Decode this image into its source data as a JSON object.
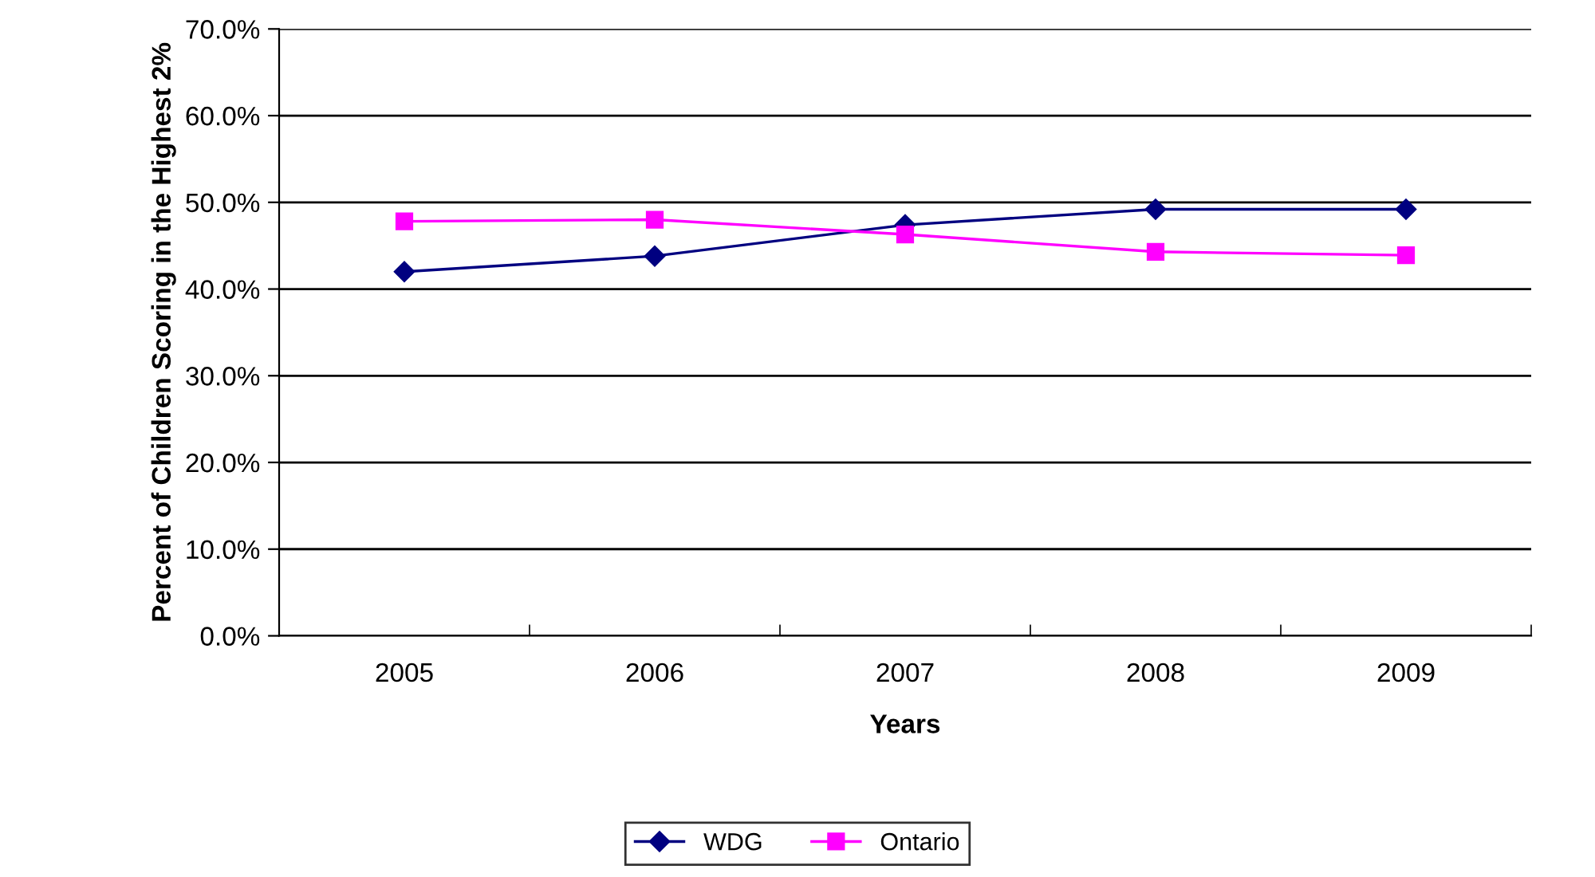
{
  "chart_data": {
    "type": "line",
    "xlabel": "Years",
    "ylabel": "Percent of Children Scoring in the Highest 2%",
    "categories": [
      "2005",
      "2006",
      "2007",
      "2008",
      "2009"
    ],
    "series": [
      {
        "name": "WDG",
        "color": "#000080",
        "marker": "diamond",
        "values": [
          42.0,
          43.8,
          47.4,
          49.2,
          49.2
        ]
      },
      {
        "name": "Ontario",
        "color": "#ff00ff",
        "marker": "square",
        "values": [
          47.8,
          48.0,
          46.3,
          44.3,
          43.9
        ]
      }
    ],
    "ylim": [
      0,
      70
    ],
    "yticks": [
      {
        "value": 0,
        "label": "0.0%"
      },
      {
        "value": 10,
        "label": "10.0%"
      },
      {
        "value": 20,
        "label": "20.0%"
      },
      {
        "value": 30,
        "label": "30.0%"
      },
      {
        "value": 40,
        "label": "40.0%"
      },
      {
        "value": 50,
        "label": "50.0%"
      },
      {
        "value": 60,
        "label": "60.0%"
      },
      {
        "value": 70,
        "label": "70.0%"
      }
    ],
    "grid": "y",
    "legend": "bottom",
    "line_style": "solid"
  }
}
